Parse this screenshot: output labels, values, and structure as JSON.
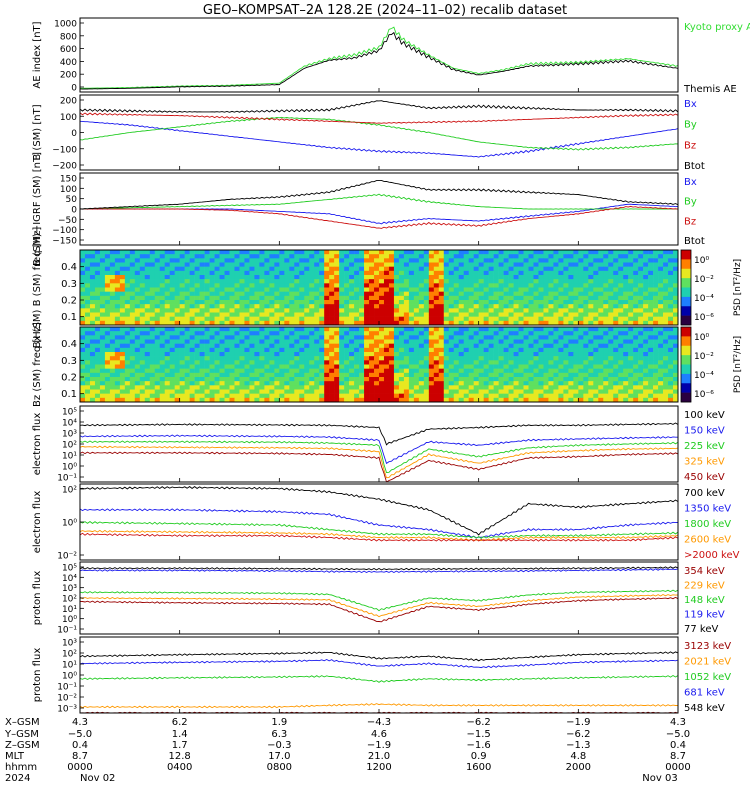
{
  "title": "GEO–KOMPSAT–2A 128.2E (2024–11–02) recalib dataset",
  "panels": [
    {
      "id": "ae",
      "ylabel": "AE index [nT]",
      "yticks": [
        "1000",
        "800",
        "600",
        "400",
        "200",
        "0"
      ],
      "legend": [
        {
          "text": "Kyoto proxy AE",
          "color": "#33dd33"
        },
        {
          "text": "Themis AE",
          "color": "#000000"
        }
      ]
    },
    {
      "id": "bsm",
      "ylabel": "B (SM) [nT]",
      "yticks": [
        "200",
        "100",
        "0",
        "−100",
        "−200"
      ],
      "legend": [
        {
          "text": "Bx",
          "color": "#1a1aee"
        },
        {
          "text": "By",
          "color": "#22cc22"
        },
        {
          "text": "Bz",
          "color": "#cc1111"
        },
        {
          "text": "Btot",
          "color": "#000000"
        }
      ]
    },
    {
      "id": "bsmigrf",
      "ylabel": "B (SM)−IGRF (SM) [nT]",
      "yticks": [
        "150",
        "100",
        "50",
        "0",
        "−50",
        "−100",
        "−150"
      ],
      "legend": [
        {
          "text": "Bx",
          "color": "#1a1aee"
        },
        {
          "text": "By",
          "color": "#22cc22"
        },
        {
          "text": "Bz",
          "color": "#cc1111"
        },
        {
          "text": "Btot",
          "color": "#000000"
        }
      ]
    },
    {
      "id": "bxspec",
      "ylabel": "Bx (SM) B (SM) freq [Hz]",
      "yticks": [
        "0.4",
        "0.3",
        "0.2",
        "0.1"
      ],
      "cbar_label": "PSD [nT²/Hz]",
      "cbar_ticks": [
        "10⁰",
        "10⁻²",
        "10⁻⁴",
        "10⁻⁶"
      ]
    },
    {
      "id": "bzspec",
      "ylabel": "Bz (SM) freq [Hz]",
      "yticks": [
        "0.4",
        "0.3",
        "0.2",
        "0.1"
      ],
      "cbar_label": "PSD [nT²/Hz]",
      "cbar_ticks": [
        "10⁰",
        "10⁻²",
        "10⁻⁴",
        "10⁻⁶"
      ]
    },
    {
      "id": "elec1",
      "ylabel": "electron flux",
      "yticks": [
        "10⁵",
        "10⁴",
        "10³",
        "10²",
        "10¹",
        "10⁰",
        "10⁻¹"
      ],
      "legend": [
        {
          "text": "100 keV",
          "color": "#000000"
        },
        {
          "text": "150 keV",
          "color": "#1a1aee"
        },
        {
          "text": "225 keV",
          "color": "#22cc22"
        },
        {
          "text": "325 keV",
          "color": "#ff9900"
        },
        {
          "text": "450 keV",
          "color": "#990000"
        }
      ]
    },
    {
      "id": "elec2",
      "ylabel": "electron flux",
      "yticks": [
        "10²",
        "10⁰",
        "10⁻²"
      ],
      "legend": [
        {
          "text": "700 keV",
          "color": "#000000"
        },
        {
          "text": "1350 keV",
          "color": "#1a1aee"
        },
        {
          "text": "1800 keV",
          "color": "#22cc22"
        },
        {
          "text": "2600 keV",
          "color": "#ff9900"
        },
        {
          "text": ">2000 keV",
          "color": "#cc1111"
        }
      ]
    },
    {
      "id": "prot1",
      "ylabel": "proton flux",
      "yticks": [
        "10⁵",
        "10⁴",
        "10³",
        "10²",
        "10¹",
        "10⁰",
        "10⁻¹"
      ],
      "legend": [
        {
          "text": "354 keV",
          "color": "#990000"
        },
        {
          "text": "229 keV",
          "color": "#ff9900"
        },
        {
          "text": "148 keV",
          "color": "#22cc22"
        },
        {
          "text": "119 keV",
          "color": "#1a1aee"
        },
        {
          "text": "77 keV",
          "color": "#000000"
        }
      ]
    },
    {
      "id": "prot2",
      "ylabel": "proton flux",
      "yticks": [
        "10³",
        "10²",
        "10¹",
        "10⁰",
        "10⁻¹",
        "10⁻²",
        "10⁻³"
      ],
      "legend": [
        {
          "text": "3123 keV",
          "color": "#990000"
        },
        {
          "text": "2021 keV",
          "color": "#ff9900"
        },
        {
          "text": "1052 keV",
          "color": "#22cc22"
        },
        {
          "text": "681 keV",
          "color": "#1a1aee"
        },
        {
          "text": "548 keV",
          "color": "#000000"
        }
      ]
    }
  ],
  "footer": {
    "row_labels": [
      "X–GSM",
      "Y–GSM",
      "Z–GSM",
      "MLT",
      "hhmm",
      "2024"
    ],
    "columns": [
      [
        "4.3",
        "−5.0",
        "0.4",
        "8.7",
        "0000",
        "Nov 02"
      ],
      [
        "6.2",
        "1.4",
        "1.7",
        "12.8",
        "0400",
        ""
      ],
      [
        "1.9",
        "6.3",
        "−0.3",
        "17.0",
        "0800",
        ""
      ],
      [
        "−4.3",
        "4.6",
        "−1.9",
        "21.0",
        "1200",
        ""
      ],
      [
        "−6.2",
        "−1.5",
        "−1.6",
        "0.9",
        "1600",
        ""
      ],
      [
        "−1.9",
        "−6.2",
        "−1.3",
        "4.8",
        "2000",
        ""
      ],
      [
        "4.3",
        "−5.0",
        "0.4",
        "8.7",
        "0000",
        "Nov 03"
      ]
    ]
  },
  "chart_data": [
    {
      "type": "line",
      "panel": "ae",
      "x_unit": "hour UT",
      "x": [
        0,
        2,
        4,
        6,
        8,
        9,
        10,
        11,
        12,
        12.5,
        13,
        14,
        15,
        16,
        17,
        18,
        20,
        22,
        24
      ],
      "series": [
        {
          "name": "Kyoto proxy AE",
          "values": [
            50,
            60,
            80,
            90,
            120,
            350,
            450,
            500,
            600,
            880,
            700,
            500,
            320,
            250,
            300,
            380,
            400,
            450,
            350
          ]
        },
        {
          "name": "Themis AE",
          "values": [
            40,
            50,
            70,
            80,
            100,
            320,
            430,
            460,
            560,
            800,
            650,
            470,
            300,
            230,
            280,
            350,
            380,
            420,
            320
          ]
        }
      ],
      "ylim": [
        0,
        1000
      ]
    },
    {
      "type": "line",
      "panel": "bsm",
      "x_unit": "hour UT",
      "x": [
        0,
        2,
        4,
        6,
        8,
        10,
        12,
        14,
        16,
        18,
        20,
        22,
        24
      ],
      "series": [
        {
          "name": "Bx",
          "values": [
            60,
            40,
            10,
            -20,
            -50,
            -80,
            -100,
            -110,
            -130,
            -100,
            -60,
            -20,
            20
          ]
        },
        {
          "name": "By",
          "values": [
            -40,
            0,
            30,
            60,
            80,
            70,
            40,
            0,
            -50,
            -80,
            -90,
            -80,
            -60
          ]
        },
        {
          "name": "Bz",
          "values": [
            100,
            95,
            90,
            80,
            70,
            60,
            50,
            55,
            60,
            70,
            80,
            90,
            95
          ]
        },
        {
          "name": "Btot",
          "values": [
            120,
            115,
            110,
            110,
            115,
            120,
            170,
            130,
            140,
            130,
            120,
            120,
            115
          ]
        }
      ],
      "ylim": [
        -200,
        200
      ]
    },
    {
      "type": "line",
      "panel": "bsmigrf",
      "x_unit": "hour UT",
      "x": [
        0,
        2,
        4,
        6,
        8,
        10,
        12,
        14,
        16,
        18,
        20,
        22,
        24
      ],
      "series": [
        {
          "name": "Bx",
          "values": [
            0,
            0,
            0,
            0,
            -10,
            -20,
            -60,
            -40,
            -50,
            -30,
            -10,
            20,
            10
          ]
        },
        {
          "name": "By",
          "values": [
            0,
            5,
            10,
            15,
            20,
            40,
            60,
            30,
            10,
            0,
            0,
            0,
            0
          ]
        },
        {
          "name": "Bz",
          "values": [
            0,
            0,
            0,
            -5,
            -20,
            -50,
            -80,
            -60,
            -70,
            -40,
            -20,
            10,
            0
          ]
        },
        {
          "name": "Btot",
          "values": [
            0,
            10,
            20,
            40,
            50,
            70,
            120,
            80,
            80,
            70,
            60,
            30,
            20
          ]
        }
      ],
      "ylim": [
        -150,
        150
      ]
    },
    {
      "type": "heatmap",
      "panel": "bxspec",
      "xlabel": "hour UT",
      "ylabel": "freq [Hz]",
      "ylim": [
        0.05,
        0.5
      ],
      "colorbar": "PSD [nT²/Hz]",
      "colorbar_range": [
        -6,
        1
      ]
    },
    {
      "type": "heatmap",
      "panel": "bzspec",
      "xlabel": "hour UT",
      "ylabel": "freq [Hz]",
      "ylim": [
        0.05,
        0.5
      ],
      "colorbar": "PSD [nT²/Hz]",
      "colorbar_range": [
        -6,
        1
      ]
    },
    {
      "type": "line",
      "panel": "elec1",
      "log_y": true,
      "x": [
        0,
        4,
        8,
        10,
        12,
        12.3,
        14,
        16,
        18,
        20,
        22,
        24
      ],
      "series": [
        {
          "name": "100 keV",
          "values": [
            3000,
            3500,
            3200,
            3000,
            2000,
            100,
            1500,
            2000,
            3000,
            3000,
            3500,
            4000
          ]
        },
        {
          "name": "150 keV",
          "values": [
            400,
            450,
            400,
            350,
            200,
            3,
            150,
            80,
            200,
            250,
            300,
            350
          ]
        },
        {
          "name": "225 keV",
          "values": [
            150,
            150,
            140,
            120,
            80,
            0.5,
            40,
            10,
            50,
            80,
            100,
            120
          ]
        },
        {
          "name": "325 keV",
          "values": [
            60,
            55,
            50,
            45,
            25,
            0.2,
            15,
            3,
            20,
            30,
            40,
            45
          ]
        },
        {
          "name": "450 keV",
          "values": [
            20,
            20,
            18,
            15,
            8,
            0.1,
            5,
            1,
            8,
            10,
            15,
            18
          ]
        }
      ],
      "ylim": [
        "1e-1",
        "1e5"
      ]
    },
    {
      "type": "line",
      "panel": "elec2",
      "log_y": true,
      "x": [
        0,
        4,
        8,
        10,
        12,
        14,
        16,
        18,
        20,
        22,
        24
      ],
      "series": [
        {
          "name": "700 keV",
          "values": [
            50,
            60,
            50,
            30,
            10,
            2,
            0.05,
            5,
            3,
            5,
            8
          ]
        },
        {
          "name": "1350 keV",
          "values": [
            2,
            2,
            1.5,
            1,
            0.2,
            0.1,
            0.03,
            0.1,
            0.1,
            0.2,
            0.3
          ]
        },
        {
          "name": "1800 keV",
          "values": [
            0.3,
            0.25,
            0.2,
            0.1,
            0.05,
            0.05,
            0.03,
            0.04,
            0.04,
            0.05,
            0.06
          ]
        },
        {
          "name": "2600 keV",
          "values": [
            0.08,
            0.07,
            0.06,
            0.05,
            0.03,
            0.03,
            0.02,
            0.03,
            0.03,
            0.03,
            0.04
          ]
        },
        {
          "name": ">2000 keV",
          "values": [
            0.05,
            0.04,
            0.04,
            0.03,
            0.02,
            0.02,
            0.02,
            0.02,
            0.02,
            0.02,
            0.03
          ]
        }
      ],
      "ylim": [
        "1e-3",
        "1e2"
      ]
    },
    {
      "type": "line",
      "panel": "prot1",
      "log_y": true,
      "x": [
        0,
        4,
        8,
        10,
        12,
        14,
        16,
        18,
        20,
        22,
        24
      ],
      "series": [
        {
          "name": "354 keV",
          "values": [
            50,
            40,
            35,
            30,
            1,
            20,
            10,
            30,
            60,
            80,
            100
          ]
        },
        {
          "name": "229 keV",
          "values": [
            100,
            90,
            80,
            70,
            3,
            40,
            20,
            60,
            120,
            150,
            180
          ]
        },
        {
          "name": "148 keV",
          "values": [
            300,
            280,
            250,
            200,
            10,
            100,
            60,
            180,
            300,
            350,
            400
          ]
        },
        {
          "name": "119 keV",
          "values": [
            20000,
            20000,
            18000,
            16000,
            15000,
            16000,
            17000,
            18000,
            20000,
            22000,
            25000
          ]
        },
        {
          "name": "77 keV",
          "values": [
            30000,
            30000,
            28000,
            26000,
            25000,
            26000,
            27000,
            28000,
            30000,
            32000,
            35000
          ]
        }
      ],
      "ylim": [
        "1e-1",
        "1e5"
      ]
    },
    {
      "type": "line",
      "panel": "prot2",
      "log_y": true,
      "x": [
        0,
        4,
        8,
        10,
        12,
        14,
        16,
        18,
        20,
        22,
        24
      ],
      "series": [
        {
          "name": "3123 keV",
          "values": [
            0.001,
            0.001,
            0.001,
            0.001,
            0.001,
            0.001,
            0.001,
            0.001,
            0.001,
            0.001,
            0.001
          ]
        },
        {
          "name": "2021 keV",
          "values": [
            0.003,
            0.003,
            0.003,
            0.004,
            0.005,
            0.004,
            0.004,
            0.004,
            0.004,
            0.004,
            0.004
          ]
        },
        {
          "name": "1052 keV",
          "values": [
            0.5,
            0.6,
            0.7,
            0.8,
            0.3,
            0.5,
            0.4,
            0.5,
            0.6,
            0.7,
            0.8
          ]
        },
        {
          "name": "681 keV",
          "values": [
            8,
            10,
            12,
            15,
            5,
            8,
            4,
            6,
            10,
            12,
            14
          ]
        },
        {
          "name": "548 keV",
          "values": [
            30,
            40,
            50,
            60,
            20,
            30,
            15,
            25,
            40,
            50,
            60
          ]
        }
      ],
      "ylim": [
        "1e-3",
        "1e3"
      ]
    }
  ]
}
